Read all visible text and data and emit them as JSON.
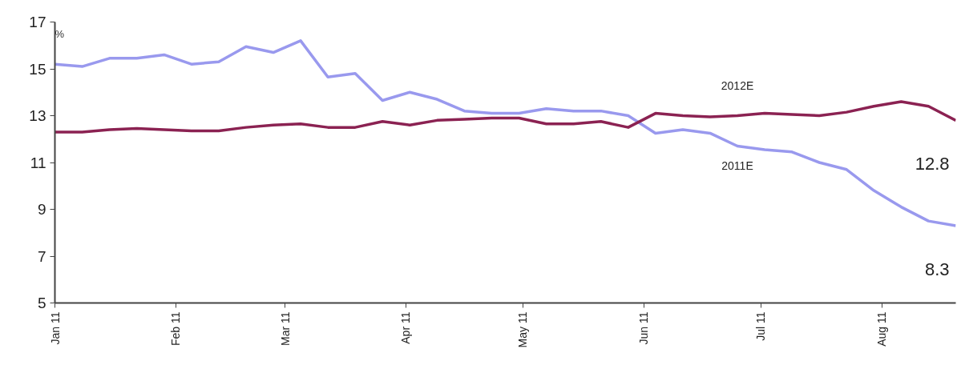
{
  "chart_data": {
    "type": "line",
    "ylabel": "%",
    "x": [
      "2011-01-01",
      "2011-01-08",
      "2011-01-15",
      "2011-01-22",
      "2011-01-29",
      "2011-02-05",
      "2011-02-12",
      "2011-02-19",
      "2011-02-26",
      "2011-03-05",
      "2011-03-12",
      "2011-03-19",
      "2011-03-26",
      "2011-04-02",
      "2011-04-09",
      "2011-04-16",
      "2011-04-23",
      "2011-04-30",
      "2011-05-07",
      "2011-05-14",
      "2011-05-21",
      "2011-05-28",
      "2011-06-04",
      "2011-06-11",
      "2011-06-18",
      "2011-06-25",
      "2011-07-02",
      "2011-07-09",
      "2011-07-16",
      "2011-07-23",
      "2011-07-30",
      "2011-08-06",
      "2011-08-13",
      "2011-08-20"
    ],
    "series": [
      {
        "name": "2011E",
        "color": "#9999ee",
        "values": [
          15.2,
          15.1,
          15.45,
          15.45,
          15.6,
          15.2,
          15.3,
          15.95,
          15.7,
          16.2,
          14.65,
          14.8,
          13.65,
          14.0,
          13.7,
          13.2,
          13.1,
          13.1,
          13.3,
          13.2,
          13.2,
          13.0,
          12.25,
          12.4,
          12.25,
          11.7,
          11.55,
          11.45,
          11.0,
          10.7,
          9.8,
          9.1,
          8.5,
          8.3
        ],
        "value_labels": [
          null,
          null,
          null,
          null,
          null,
          null,
          null,
          null,
          null,
          null,
          null,
          null,
          null,
          null,
          null,
          null,
          null,
          null,
          null,
          null,
          null,
          null,
          null,
          null,
          null,
          null,
          null,
          null,
          null,
          null,
          null,
          null,
          null,
          "8.3"
        ]
      },
      {
        "name": "2012E",
        "color": "#8b2252",
        "values": [
          12.3,
          12.3,
          12.4,
          12.45,
          12.4,
          12.35,
          12.35,
          12.5,
          12.6,
          12.65,
          12.5,
          12.5,
          12.75,
          12.6,
          12.8,
          12.85,
          12.9,
          12.9,
          12.65,
          12.65,
          12.75,
          12.5,
          13.1,
          13.0,
          12.95,
          13.0,
          13.1,
          13.05,
          13.0,
          13.15,
          13.4,
          13.6,
          13.4,
          12.8
        ],
        "value_labels": [
          null,
          null,
          null,
          null,
          null,
          null,
          null,
          null,
          null,
          null,
          null,
          null,
          null,
          null,
          null,
          null,
          null,
          null,
          null,
          null,
          null,
          null,
          null,
          null,
          null,
          null,
          null,
          null,
          null,
          null,
          null,
          null,
          null,
          "12.8"
        ]
      }
    ],
    "xlim": [
      "2011-01-01",
      "2011-08-20"
    ],
    "xticks": [
      {
        "value": "2011-01-01",
        "label": "Jan 11"
      },
      {
        "value": "2011-02-01",
        "label": "Feb 11"
      },
      {
        "value": "2011-03-01",
        "label": "Mar 11"
      },
      {
        "value": "2011-04-01",
        "label": "Apr 11"
      },
      {
        "value": "2011-05-01",
        "label": "May 11"
      },
      {
        "value": "2011-06-01",
        "label": "Jun 11"
      },
      {
        "value": "2011-07-01",
        "label": "Jul 11"
      },
      {
        "value": "2011-08-01",
        "label": "Aug 11"
      }
    ],
    "ylim": [
      5,
      17
    ],
    "yticks": [
      5,
      7,
      9,
      11,
      13,
      15,
      17
    ],
    "grid": false,
    "marker": "none",
    "line_style": "solid"
  }
}
